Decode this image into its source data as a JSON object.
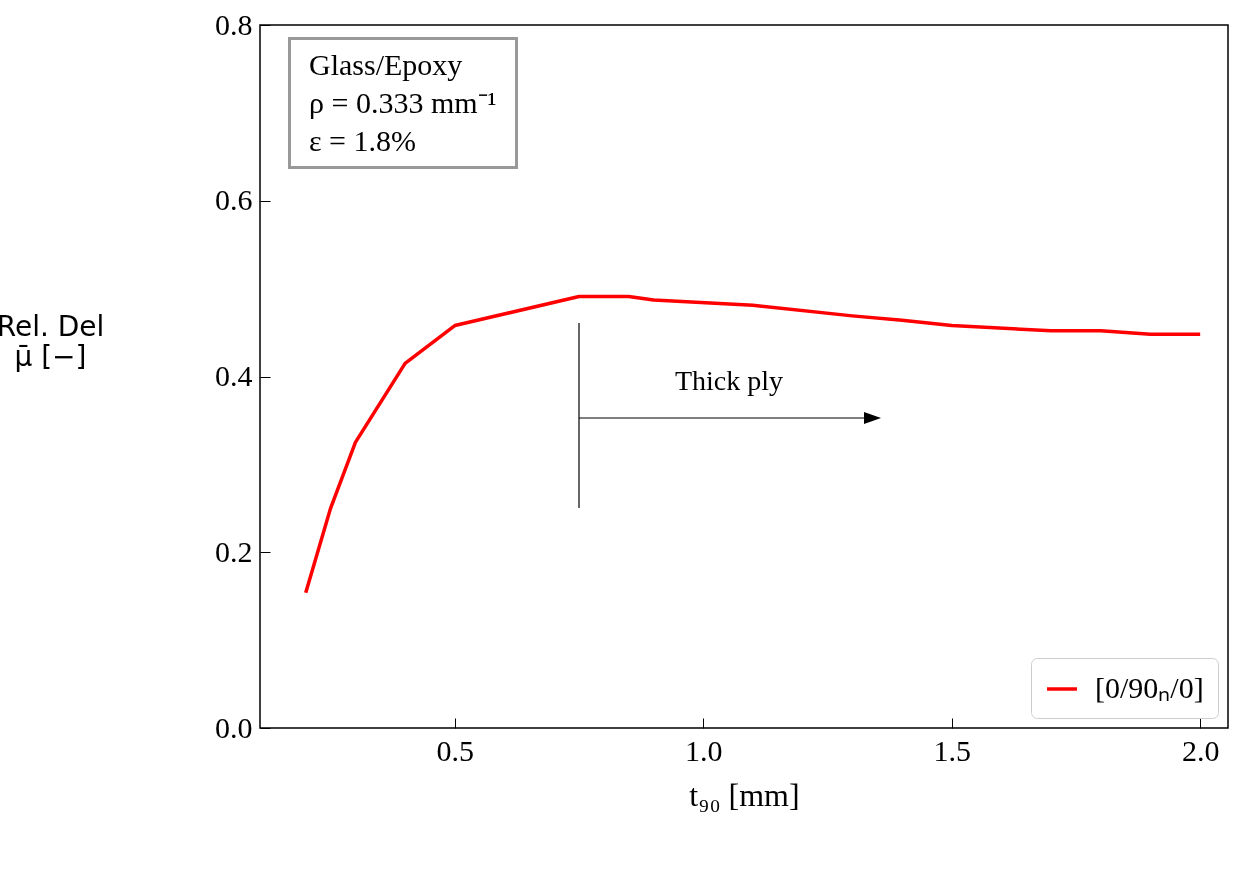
{
  "chart_data": {
    "type": "line",
    "xlabel": "t₉₀ [mm]",
    "ylabel": "Rel. Del\nμ̄ [−]",
    "x": [
      0.2,
      0.25,
      0.3,
      0.4,
      0.5,
      0.75,
      0.85,
      0.9,
      1.1,
      1.3,
      1.4,
      1.5,
      1.7,
      1.8,
      1.9,
      2.0
    ],
    "series": [
      {
        "name": "[0/90ₙ/0]",
        "color": "#ff0000",
        "values": [
          0.154,
          0.25,
          0.325,
          0.415,
          0.458,
          0.491,
          0.491,
          0.487,
          0.481,
          0.469,
          0.464,
          0.458,
          0.452,
          0.452,
          0.448,
          0.448
        ]
      }
    ],
    "xlim": [
      0.108,
      2.056
    ],
    "xticks": [
      0.5,
      {
        "value": 1,
        "label": "1.0"
      },
      1.5,
      {
        "value": 2,
        "label": "2.0"
      }
    ],
    "ylim": [
      0,
      0.8
    ],
    "yticks": [
      {
        "value": 0,
        "label": "0.0"
      },
      0.2,
      0.4,
      0.6,
      0.8
    ],
    "legend": "bottom right",
    "grid": false,
    "line_style": "solid",
    "marker": "none",
    "annotations": [
      "Glass/Epoxy\nρ = 0.333 mm⁻¹\nε = 1.8%",
      "Thick ply"
    ]
  }
}
